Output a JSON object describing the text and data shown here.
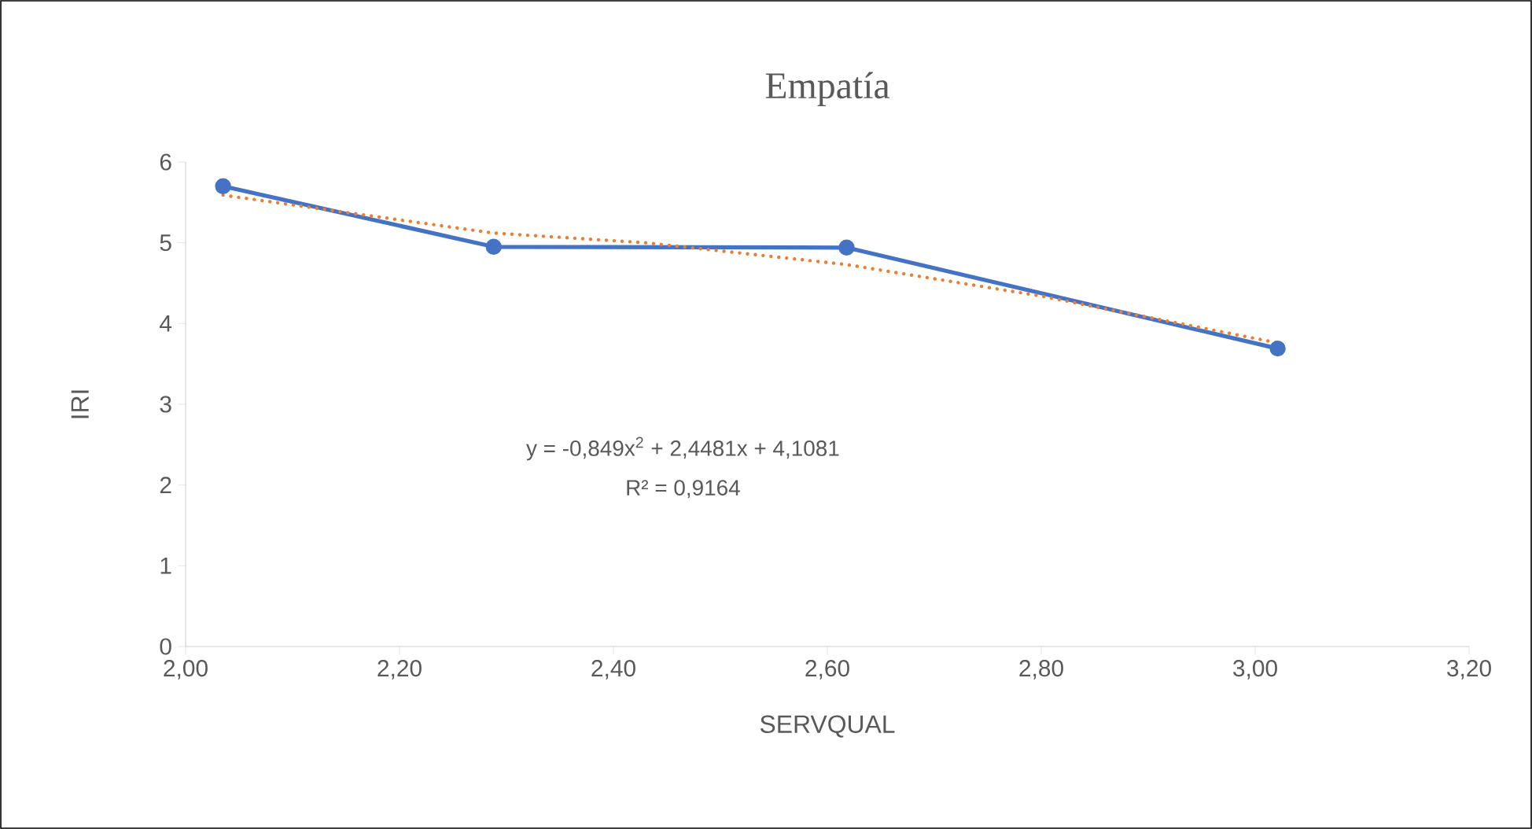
{
  "chart_data": {
    "type": "line",
    "title": "Empatía",
    "xlabel": "SERVQUAL",
    "ylabel": "IRI",
    "xlim": [
      2.0,
      3.2
    ],
    "xticks": [
      {
        "value": 2.0,
        "label": "2,00"
      },
      {
        "value": 2.2,
        "label": "2,20"
      },
      {
        "value": 2.4,
        "label": "2,40"
      },
      {
        "value": 2.6,
        "label": "2,60"
      },
      {
        "value": 2.8,
        "label": "2,80"
      },
      {
        "value": 3.0,
        "label": "3,00"
      },
      {
        "value": 3.2,
        "label": "3,20"
      }
    ],
    "ylim": [
      0,
      6
    ],
    "yticks": [
      0,
      1,
      2,
      3,
      4,
      5,
      6
    ],
    "grid": false,
    "series": [
      {
        "color": "#4472c4",
        "marker": "circle",
        "line_style": "solid",
        "x": [
          2.035,
          2.288,
          2.618,
          3.021
        ],
        "values": [
          5.7,
          4.95,
          4.94,
          3.69
        ]
      },
      {
        "color": "#ed7d31",
        "marker": "none",
        "line_style": "dotted",
        "x": [
          2.035,
          2.288,
          2.43,
          2.618,
          2.8,
          3.021
        ],
        "values": [
          5.59,
          5.12,
          5.0,
          4.73,
          4.34,
          3.76
        ]
      }
    ],
    "annotations": [
      "y = -0,849x$^{2}$ + 2,4481x + 4,1081",
      "R² = 0,9164"
    ]
  }
}
